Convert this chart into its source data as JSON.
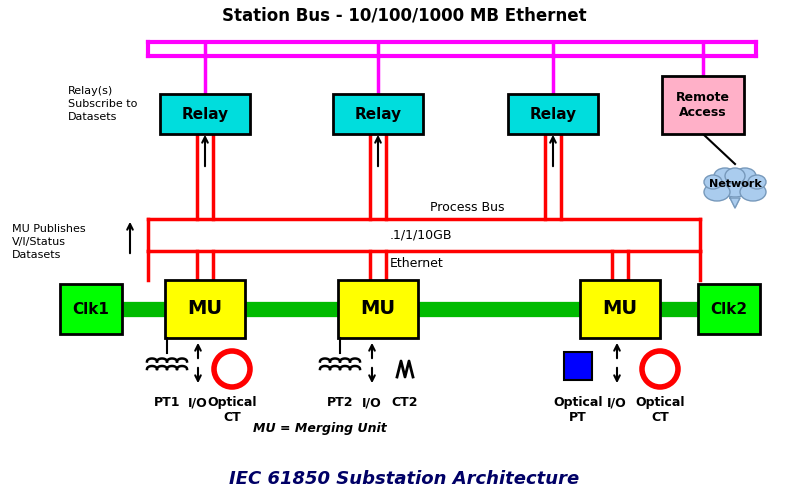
{
  "title": "IEC 61850 Substation Architecture",
  "station_bus_label": "Station Bus - 10/100/1000 MB Ethernet",
  "process_bus_label1": "Process Bus",
  "process_bus_label2": ".1/1/10GB",
  "process_bus_label3": "Ethernet",
  "mu_label": "MU = Merging Unit",
  "relay_color": "#00DDDD",
  "relay_border": "#000000",
  "mu_color": "#FFFF00",
  "mu_border": "#000000",
  "clk_color": "#00FF00",
  "clk_border": "#000000",
  "remote_access_color": "#FFB0C8",
  "remote_access_border": "#000000",
  "station_bus_color": "#FF00FF",
  "process_bus_color": "#FF0000",
  "field_bus_color": "#00BB00",
  "network_cloud_color": "#AACCEE",
  "optical_ct_color": "#FF0000",
  "optical_pt_color": "#0000FF",
  "bg_color": "#FFFFFF",
  "text_color": "#000000",
  "relay_labels": [
    "Relay",
    "Relay",
    "Relay"
  ],
  "mu_labels": [
    "MU",
    "MU",
    "MU"
  ],
  "clk_labels": [
    "Clk1",
    "Clk2"
  ]
}
